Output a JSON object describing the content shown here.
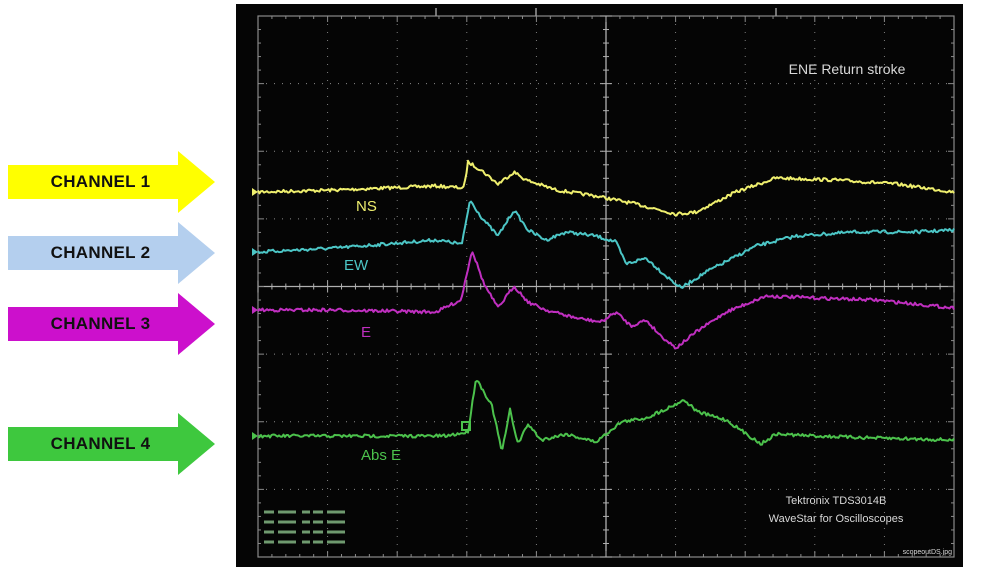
{
  "labels": [
    {
      "id": "ch1",
      "text": "CHANNEL 1",
      "color": "#ffff00"
    },
    {
      "id": "ch2",
      "text": "CHANNEL 2",
      "color": "#b4cfee"
    },
    {
      "id": "ch3",
      "text": "CHANNEL 3",
      "color": "#cc10cc"
    },
    {
      "id": "ch4",
      "text": "CHANNEL 4",
      "color": "#3ec83e"
    }
  ],
  "scope": {
    "title": "ENE Return stroke",
    "brand_line1": "Tektronix TDS3014B",
    "brand_line2": "WaveStar for Oscilloscopes",
    "file_tag": "scopeoutDS.jpg",
    "readout": [
      "",
      ""
    ]
  },
  "chart_data": {
    "type": "line",
    "title": "ENE Return stroke",
    "xlabel": "",
    "ylabel": "",
    "xlim": [
      0,
      10
    ],
    "ylim": [
      -4,
      4
    ],
    "grid": true,
    "series": [
      {
        "name": "NS",
        "color": "#efef6e"
      },
      {
        "name": "EW",
        "color": "#4cc6c6"
      },
      {
        "name": "E",
        "color": "#c02fc0"
      },
      {
        "name": "Abs E",
        "color": "#4cc24c"
      }
    ]
  }
}
